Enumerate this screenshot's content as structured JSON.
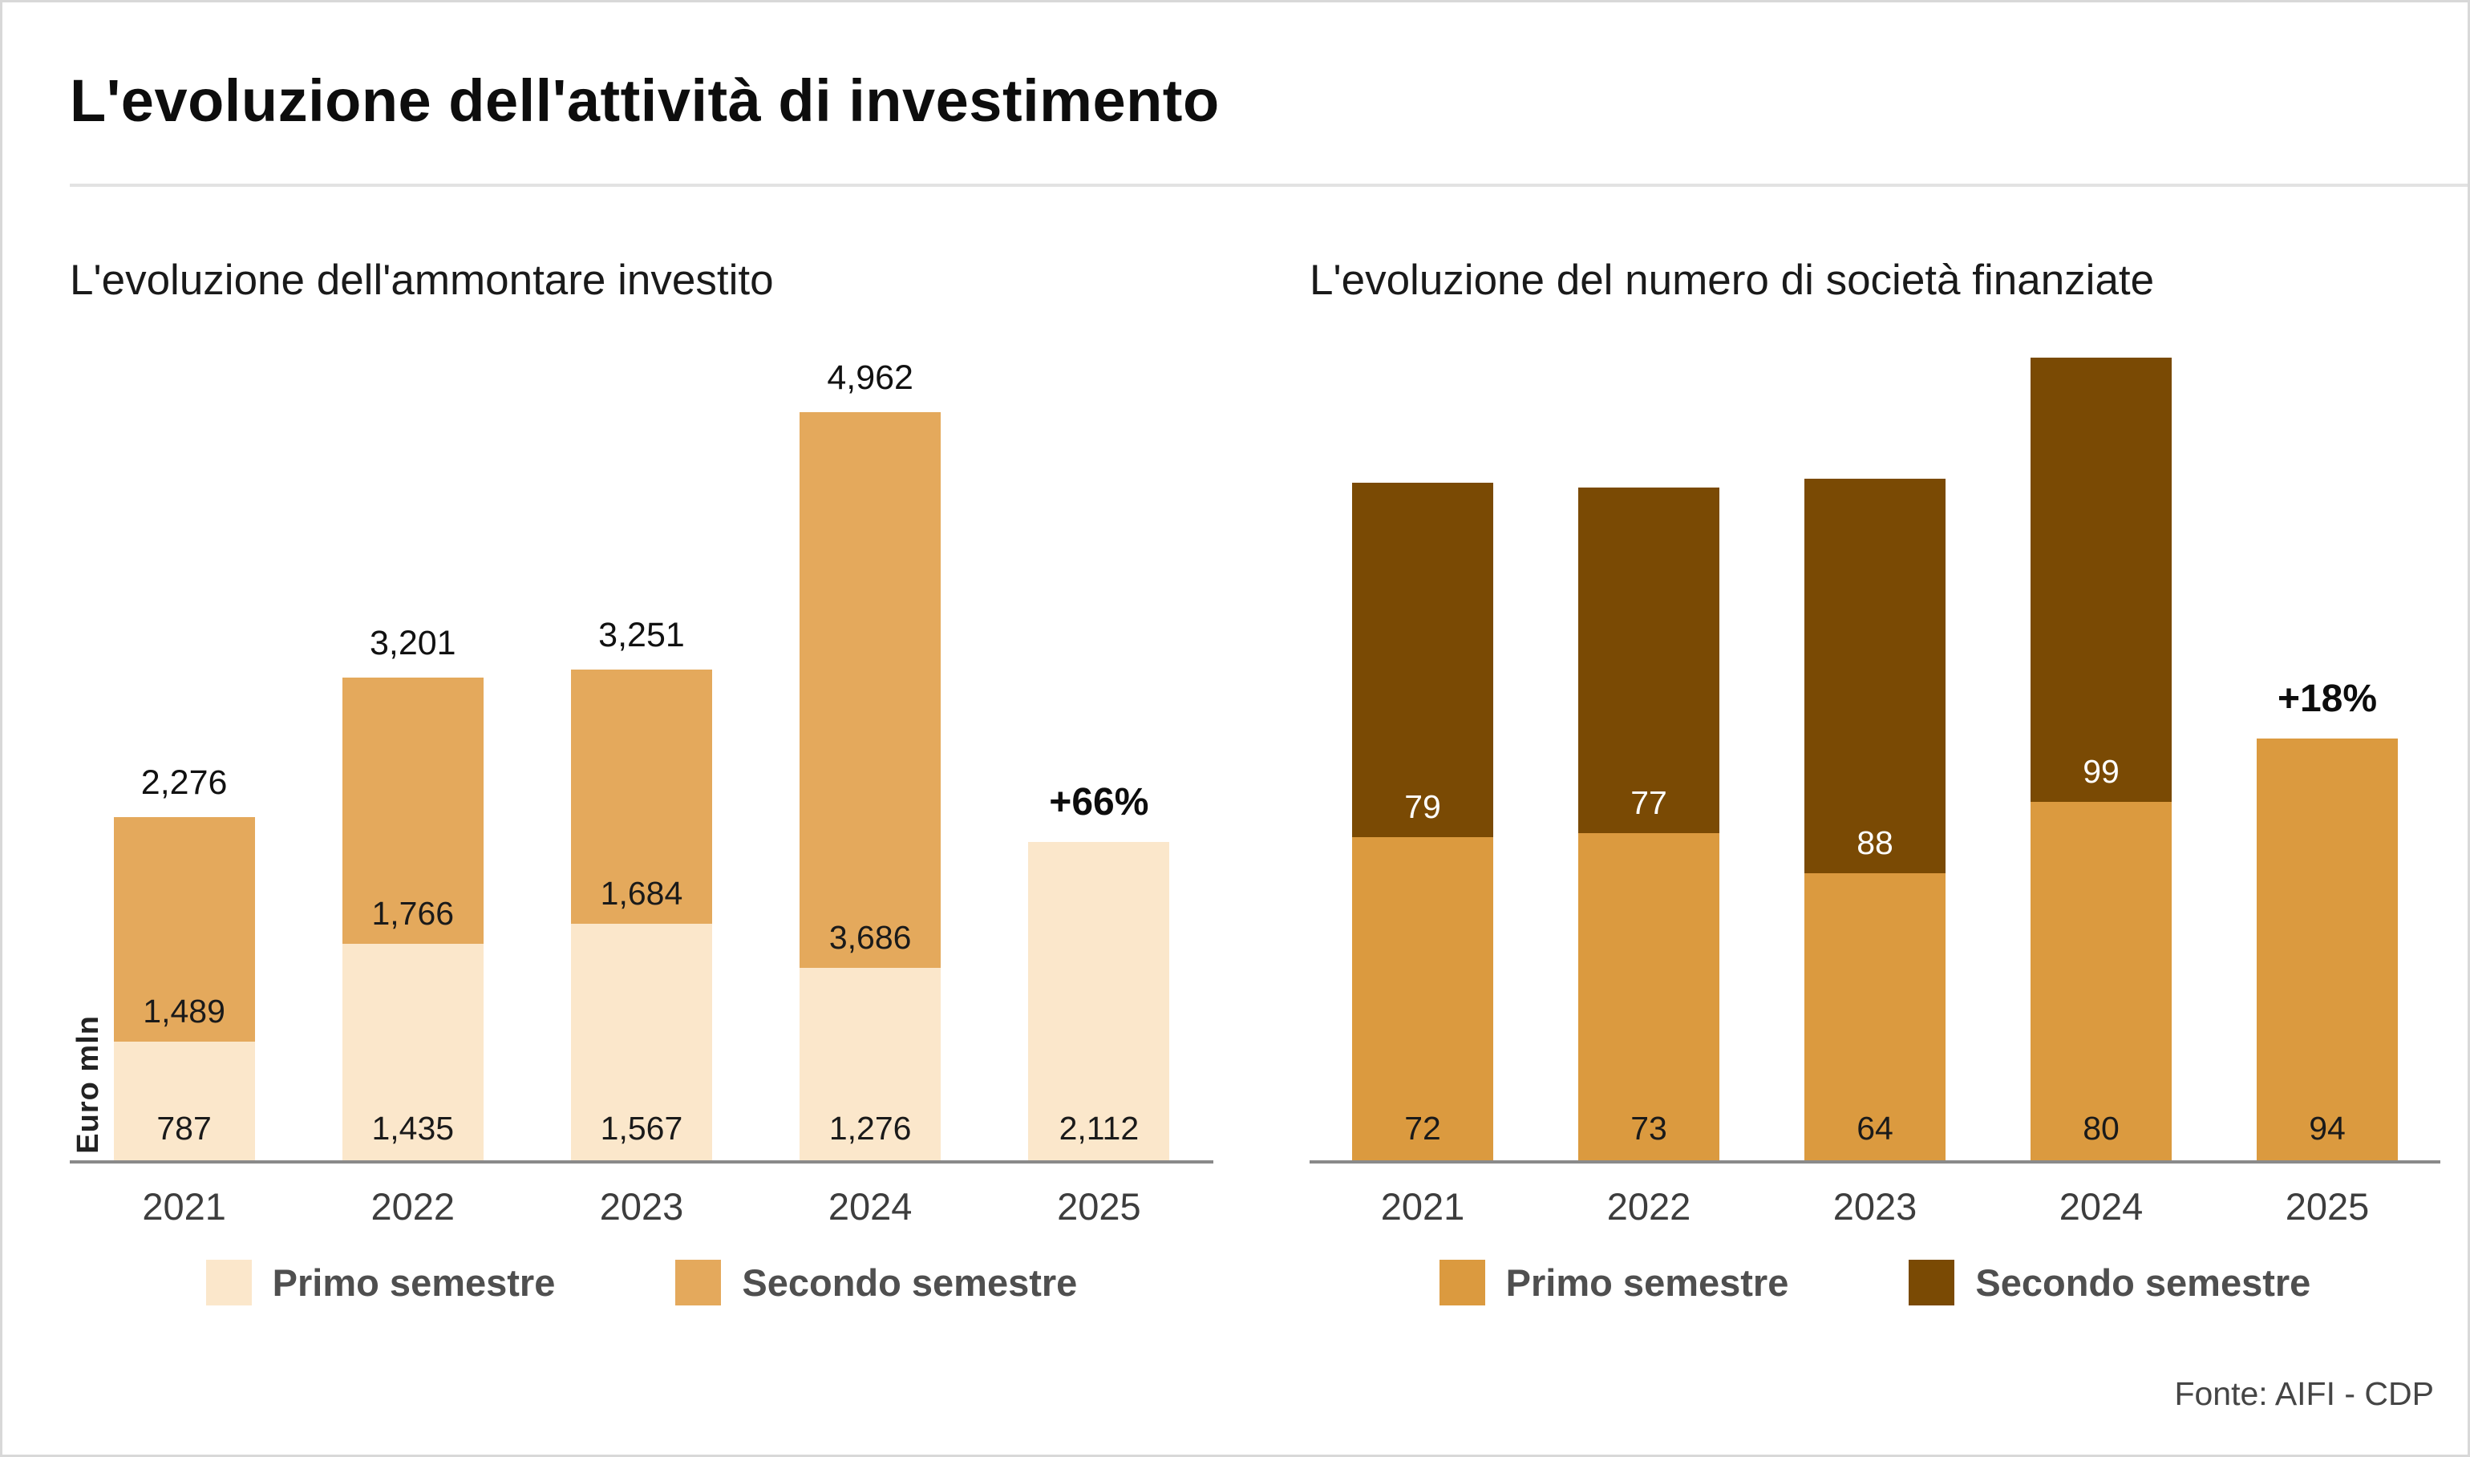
{
  "header": {
    "title": "L'evoluzione dell'attività di investimento"
  },
  "footer": {
    "source": "Fonte: AIFI - CDP"
  },
  "colors": {
    "axis": "#8a8a8a",
    "divider": "#e3e3e3",
    "primo_left": "#FBE7CB",
    "secondo_left": "#E4A95C",
    "primo_right": "#DB9A3F",
    "secondo_right": "#7A4A04"
  },
  "chart_data": [
    {
      "type": "bar",
      "stacked": true,
      "title": "L'evoluzione dell'ammontare investito",
      "ylabel": "Euro mln",
      "xlabel": "",
      "categories": [
        "2021",
        "2022",
        "2023",
        "2024",
        "2025"
      ],
      "ylim": [
        0,
        5530
      ],
      "grid": false,
      "legend_position": "bottom",
      "series": [
        {
          "name": "Primo semestre",
          "color": "#FBE7CB",
          "label_color": "#1a1a1a",
          "values": [
            787,
            1435,
            1567,
            1276,
            2112
          ],
          "labels": [
            "787",
            "1,435",
            "1,567",
            "1,276",
            "2,112"
          ]
        },
        {
          "name": "Secondo semestre",
          "color": "#E4A95C",
          "label_color": "#1a1a1a",
          "values": [
            1489,
            1766,
            1684,
            3686,
            0
          ],
          "labels": [
            "1,489",
            "1,766",
            "1,684",
            "3,686",
            ""
          ]
        }
      ],
      "totals": [
        2276,
        3201,
        3251,
        4962,
        2112
      ],
      "total_labels": [
        "2,276",
        "3,201",
        "3,251",
        "4,962",
        ""
      ],
      "annotations": [
        {
          "index": 4,
          "label": "+66%"
        }
      ]
    },
    {
      "type": "bar",
      "stacked": true,
      "title": "L'evoluzione del numero di società finanziate",
      "ylabel": "",
      "xlabel": "",
      "categories": [
        "2021",
        "2022",
        "2023",
        "2024",
        "2025"
      ],
      "ylim": [
        0,
        186
      ],
      "grid": false,
      "legend_position": "bottom",
      "series": [
        {
          "name": "Primo semestre",
          "color": "#DB9A3F",
          "label_color": "#1a1a1a",
          "values": [
            72,
            73,
            64,
            80,
            94
          ],
          "labels": [
            "72",
            "73",
            "64",
            "80",
            "94"
          ]
        },
        {
          "name": "Secondo semestre",
          "color": "#7A4A04",
          "label_color": "#ffffff",
          "values": [
            79,
            77,
            88,
            99,
            0
          ],
          "labels": [
            "79",
            "77",
            "88",
            "99",
            ""
          ]
        }
      ],
      "totals": [
        151,
        150,
        152,
        179,
        94
      ],
      "total_labels": [
        "",
        "",
        "",
        "",
        ""
      ],
      "annotations": [
        {
          "index": 4,
          "label": "+18%"
        }
      ]
    }
  ]
}
